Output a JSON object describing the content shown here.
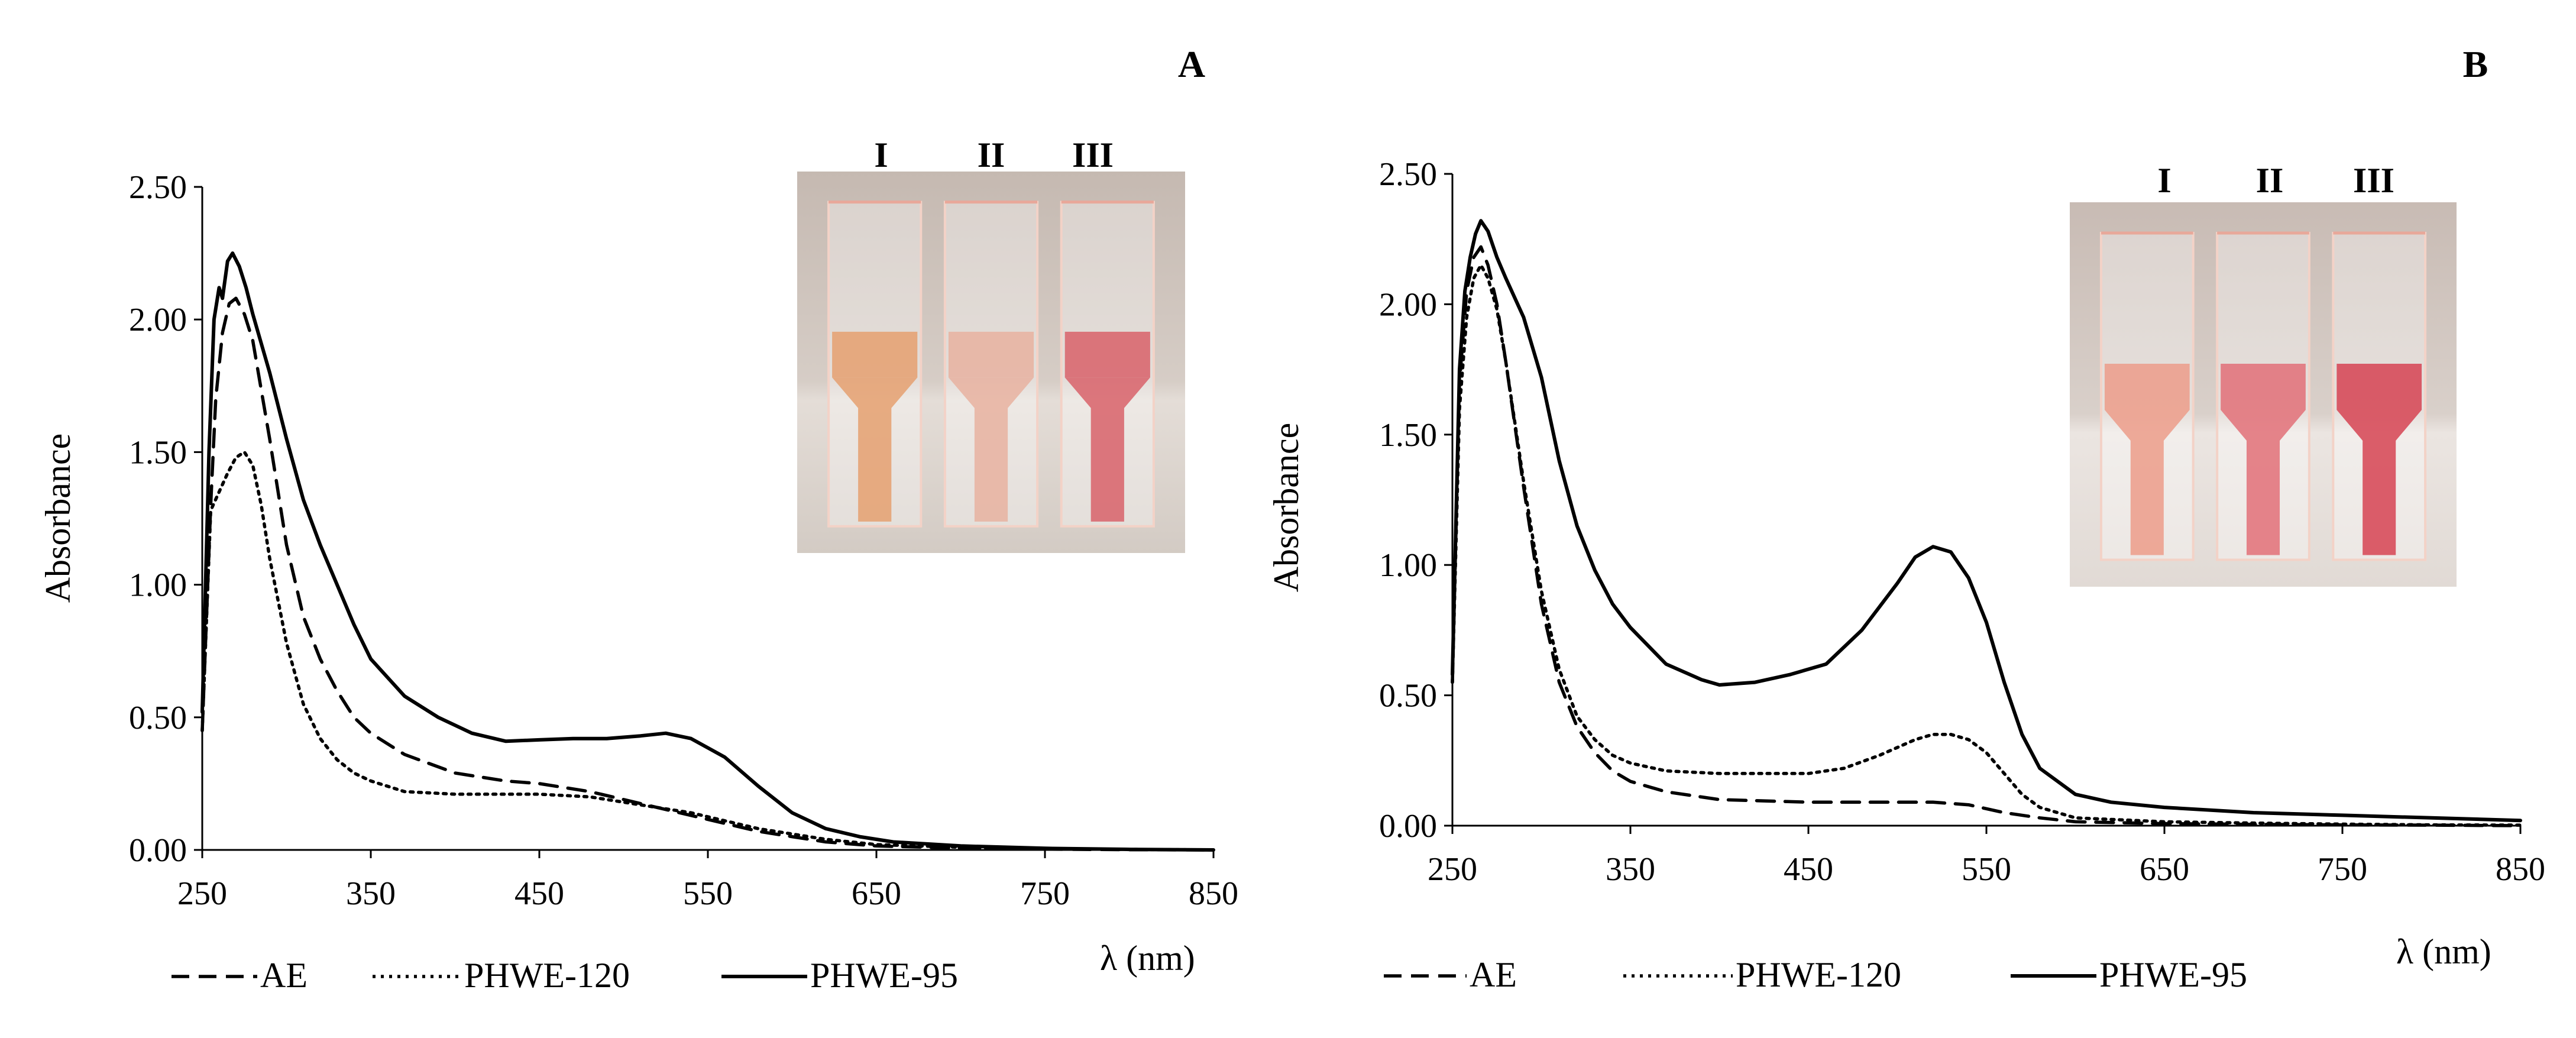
{
  "chart_data": [
    {
      "type": "line",
      "panel": "A",
      "xlabel": "λ (nm)",
      "ylabel": "Absorbance",
      "xlim": [
        250,
        850
      ],
      "ylim": [
        0,
        2.5
      ],
      "x_ticks": [
        "250",
        "350",
        "450",
        "550",
        "650",
        "750",
        "850"
      ],
      "y_ticks": [
        "0.00",
        "0.50",
        "1.00",
        "1.50",
        "2.00",
        "2.50"
      ],
      "inset_labels": [
        "I",
        "II",
        "III"
      ],
      "series": [
        {
          "name": "AE",
          "style": "dashed",
          "points": [
            [
              250,
              0.45
            ],
            [
              255,
              1.3
            ],
            [
              258,
              1.7
            ],
            [
              262,
              1.95
            ],
            [
              266,
              2.06
            ],
            [
              270,
              2.08
            ],
            [
              275,
              2.02
            ],
            [
              280,
              1.92
            ],
            [
              290,
              1.55
            ],
            [
              300,
              1.15
            ],
            [
              310,
              0.88
            ],
            [
              320,
              0.72
            ],
            [
              330,
              0.6
            ],
            [
              340,
              0.5
            ],
            [
              350,
              0.44
            ],
            [
              370,
              0.36
            ],
            [
              400,
              0.29
            ],
            [
              430,
              0.26
            ],
            [
              450,
              0.25
            ],
            [
              480,
              0.22
            ],
            [
              500,
              0.19
            ],
            [
              520,
              0.16
            ],
            [
              540,
              0.13
            ],
            [
              560,
              0.1
            ],
            [
              580,
              0.07
            ],
            [
              600,
              0.05
            ],
            [
              620,
              0.03
            ],
            [
              650,
              0.015
            ],
            [
              700,
              0.007
            ],
            [
              750,
              0.003
            ],
            [
              800,
              0.001
            ],
            [
              850,
              0.0
            ]
          ]
        },
        {
          "name": "PHWE-120",
          "style": "dotted",
          "points": [
            [
              250,
              0.45
            ],
            [
              255,
              1.28
            ],
            [
              260,
              1.35
            ],
            [
              265,
              1.42
            ],
            [
              270,
              1.48
            ],
            [
              275,
              1.5
            ],
            [
              280,
              1.45
            ],
            [
              285,
              1.3
            ],
            [
              290,
              1.1
            ],
            [
              300,
              0.78
            ],
            [
              310,
              0.55
            ],
            [
              320,
              0.42
            ],
            [
              330,
              0.34
            ],
            [
              340,
              0.29
            ],
            [
              350,
              0.26
            ],
            [
              370,
              0.22
            ],
            [
              400,
              0.21
            ],
            [
              450,
              0.21
            ],
            [
              480,
              0.2
            ],
            [
              500,
              0.18
            ],
            [
              520,
              0.16
            ],
            [
              540,
              0.14
            ],
            [
              560,
              0.11
            ],
            [
              580,
              0.08
            ],
            [
              600,
              0.06
            ],
            [
              620,
              0.04
            ],
            [
              650,
              0.02
            ],
            [
              700,
              0.01
            ],
            [
              750,
              0.004
            ],
            [
              800,
              0.002
            ],
            [
              850,
              0.0
            ]
          ]
        },
        {
          "name": "PHWE-95",
          "style": "solid",
          "points": [
            [
              250,
              0.52
            ],
            [
              254,
              1.5
            ],
            [
              257,
              2.0
            ],
            [
              260,
              2.12
            ],
            [
              262,
              2.08
            ],
            [
              265,
              2.22
            ],
            [
              268,
              2.25
            ],
            [
              272,
              2.2
            ],
            [
              276,
              2.12
            ],
            [
              280,
              2.02
            ],
            [
              290,
              1.8
            ],
            [
              300,
              1.55
            ],
            [
              310,
              1.32
            ],
            [
              320,
              1.15
            ],
            [
              330,
              1.0
            ],
            [
              340,
              0.85
            ],
            [
              350,
              0.72
            ],
            [
              370,
              0.58
            ],
            [
              390,
              0.5
            ],
            [
              410,
              0.44
            ],
            [
              430,
              0.41
            ],
            [
              450,
              0.415
            ],
            [
              470,
              0.42
            ],
            [
              490,
              0.42
            ],
            [
              510,
              0.43
            ],
            [
              525,
              0.44
            ],
            [
              540,
              0.42
            ],
            [
              560,
              0.35
            ],
            [
              580,
              0.24
            ],
            [
              600,
              0.14
            ],
            [
              620,
              0.08
            ],
            [
              640,
              0.05
            ],
            [
              660,
              0.03
            ],
            [
              700,
              0.015
            ],
            [
              750,
              0.006
            ],
            [
              800,
              0.002
            ],
            [
              850,
              0.0
            ]
          ]
        }
      ],
      "legend": [
        "AE",
        "PHWE-120",
        "PHWE-95"
      ]
    },
    {
      "type": "line",
      "panel": "B",
      "xlabel": "λ (nm)",
      "ylabel": "Absorbance",
      "xlim": [
        250,
        850
      ],
      "ylim": [
        0,
        2.5
      ],
      "x_ticks": [
        "250",
        "350",
        "450",
        "550",
        "650",
        "750",
        "850"
      ],
      "y_ticks": [
        "0.00",
        "0.50",
        "1.00",
        "1.50",
        "2.00",
        "2.50"
      ],
      "inset_labels": [
        "I",
        "II",
        "III"
      ],
      "series": [
        {
          "name": "AE",
          "style": "dashed",
          "points": [
            [
              250,
              0.55
            ],
            [
              254,
              1.7
            ],
            [
              258,
              2.05
            ],
            [
              262,
              2.18
            ],
            [
              266,
              2.22
            ],
            [
              270,
              2.15
            ],
            [
              275,
              2.0
            ],
            [
              280,
              1.78
            ],
            [
              290,
              1.3
            ],
            [
              300,
              0.85
            ],
            [
              310,
              0.55
            ],
            [
              320,
              0.38
            ],
            [
              330,
              0.28
            ],
            [
              340,
              0.21
            ],
            [
              350,
              0.17
            ],
            [
              370,
              0.13
            ],
            [
              400,
              0.1
            ],
            [
              450,
              0.09
            ],
            [
              500,
              0.09
            ],
            [
              520,
              0.09
            ],
            [
              540,
              0.08
            ],
            [
              560,
              0.05
            ],
            [
              580,
              0.03
            ],
            [
              600,
              0.015
            ],
            [
              650,
              0.008
            ],
            [
              700,
              0.005
            ],
            [
              750,
              0.003
            ],
            [
              800,
              0.002
            ],
            [
              850,
              0.0
            ]
          ]
        },
        {
          "name": "PHWE-120",
          "style": "dotted",
          "points": [
            [
              250,
              0.55
            ],
            [
              254,
              1.6
            ],
            [
              258,
              1.95
            ],
            [
              262,
              2.1
            ],
            [
              266,
              2.15
            ],
            [
              270,
              2.1
            ],
            [
              275,
              1.98
            ],
            [
              280,
              1.78
            ],
            [
              290,
              1.32
            ],
            [
              300,
              0.9
            ],
            [
              310,
              0.6
            ],
            [
              320,
              0.42
            ],
            [
              330,
              0.33
            ],
            [
              340,
              0.27
            ],
            [
              350,
              0.24
            ],
            [
              370,
              0.21
            ],
            [
              400,
              0.2
            ],
            [
              450,
              0.2
            ],
            [
              470,
              0.22
            ],
            [
              490,
              0.27
            ],
            [
              510,
              0.33
            ],
            [
              520,
              0.35
            ],
            [
              530,
              0.35
            ],
            [
              540,
              0.33
            ],
            [
              550,
              0.28
            ],
            [
              560,
              0.2
            ],
            [
              570,
              0.12
            ],
            [
              580,
              0.07
            ],
            [
              600,
              0.03
            ],
            [
              650,
              0.015
            ],
            [
              700,
              0.01
            ],
            [
              750,
              0.006
            ],
            [
              800,
              0.003
            ],
            [
              850,
              0.002
            ]
          ]
        },
        {
          "name": "PHWE-95",
          "style": "solid",
          "points": [
            [
              250,
              0.58
            ],
            [
              254,
              1.75
            ],
            [
              257,
              2.05
            ],
            [
              260,
              2.18
            ],
            [
              263,
              2.27
            ],
            [
              266,
              2.32
            ],
            [
              270,
              2.28
            ],
            [
              275,
              2.18
            ],
            [
              280,
              2.1
            ],
            [
              290,
              1.95
            ],
            [
              300,
              1.72
            ],
            [
              310,
              1.4
            ],
            [
              320,
              1.15
            ],
            [
              330,
              0.98
            ],
            [
              340,
              0.85
            ],
            [
              350,
              0.76
            ],
            [
              370,
              0.62
            ],
            [
              390,
              0.56
            ],
            [
              400,
              0.54
            ],
            [
              420,
              0.55
            ],
            [
              440,
              0.58
            ],
            [
              460,
              0.62
            ],
            [
              480,
              0.75
            ],
            [
              500,
              0.93
            ],
            [
              510,
              1.03
            ],
            [
              520,
              1.07
            ],
            [
              530,
              1.05
            ],
            [
              540,
              0.95
            ],
            [
              550,
              0.78
            ],
            [
              560,
              0.55
            ],
            [
              570,
              0.35
            ],
            [
              580,
              0.22
            ],
            [
              600,
              0.12
            ],
            [
              620,
              0.09
            ],
            [
              650,
              0.07
            ],
            [
              700,
              0.05
            ],
            [
              750,
              0.04
            ],
            [
              800,
              0.03
            ],
            [
              850,
              0.02
            ]
          ]
        }
      ],
      "legend": [
        "AE",
        "PHWE-120",
        "PHWE-95"
      ]
    }
  ]
}
